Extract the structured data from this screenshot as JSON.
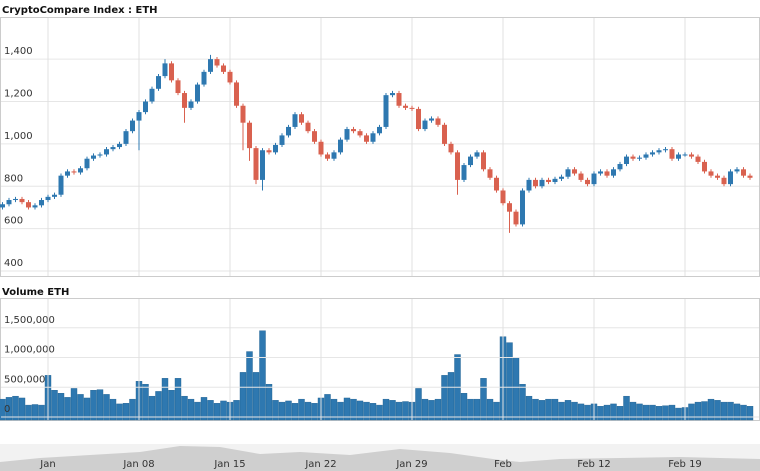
{
  "chart_data": [
    {
      "type": "candlestick",
      "title": "CryptoCompare Index : ETH",
      "categories": [
        null,
        null,
        null,
        null,
        null,
        null,
        null,
        "Jan",
        null,
        null,
        null,
        null,
        null,
        null,
        null,
        null,
        null,
        null,
        null,
        null,
        null,
        "Jan 08",
        null,
        null,
        null,
        null,
        null,
        null,
        null,
        null,
        null,
        null,
        null,
        null,
        null,
        "Jan 15",
        null,
        null,
        null,
        null,
        null,
        null,
        null,
        null,
        null,
        null,
        null,
        null,
        null,
        "Jan 22",
        null,
        null,
        null,
        null,
        null,
        null,
        null,
        null,
        null,
        null,
        null,
        null,
        null,
        "Jan 29",
        null,
        null,
        null,
        null,
        null,
        null,
        null,
        null,
        null,
        null,
        null,
        null,
        null,
        "Feb",
        null,
        null,
        null,
        null,
        null,
        null,
        null,
        null,
        null,
        null,
        null,
        null,
        null,
        "Feb 12",
        null,
        null,
        null,
        null,
        null,
        null,
        null,
        null,
        null,
        null,
        null,
        null,
        null,
        "Feb 19",
        null,
        null,
        null,
        null,
        null,
        null,
        null,
        null,
        null,
        null
      ],
      "open": [
        700,
        715,
        735,
        740,
        725,
        700,
        710,
        735,
        750,
        760,
        850,
        870,
        865,
        885,
        930,
        945,
        950,
        975,
        985,
        1000,
        1060,
        1110,
        1150,
        1200,
        1260,
        1320,
        1380,
        1300,
        1240,
        1170,
        1200,
        1280,
        1340,
        1400,
        1370,
        1340,
        1290,
        1180,
        1100,
        980,
        830,
        970,
        960,
        995,
        1040,
        1080,
        1140,
        1100,
        1060,
        1010,
        950,
        930,
        960,
        1020,
        1070,
        1060,
        1040,
        1010,
        1050,
        1080,
        1230,
        1240,
        1180,
        1170,
        1165,
        1070,
        1110,
        1120,
        1090,
        1000,
        960,
        830,
        900,
        940,
        960,
        880,
        840,
        780,
        720,
        680,
        620,
        780,
        830,
        800,
        830,
        820,
        835,
        845,
        880,
        860,
        830,
        810,
        860,
        870,
        850,
        880,
        905,
        940,
        930,
        935,
        950,
        960,
        970,
        975,
        930,
        950,
        950,
        940,
        915,
        870,
        850,
        840,
        810,
        870,
        880,
        850
      ],
      "high": [
        725,
        745,
        750,
        750,
        735,
        720,
        745,
        760,
        770,
        860,
        880,
        880,
        895,
        940,
        955,
        960,
        985,
        995,
        1010,
        1070,
        1120,
        1160,
        1210,
        1270,
        1330,
        1400,
        1390,
        1310,
        1250,
        1210,
        1290,
        1350,
        1420,
        1410,
        1380,
        1350,
        1300,
        1190,
        1110,
        990,
        980,
        980,
        1005,
        1050,
        1090,
        1150,
        1150,
        1110,
        1070,
        1020,
        960,
        970,
        1030,
        1080,
        1080,
        1070,
        1050,
        1060,
        1090,
        1240,
        1250,
        1250,
        1190,
        1180,
        1175,
        1120,
        1130,
        1130,
        1100,
        1010,
        970,
        910,
        950,
        970,
        970,
        890,
        850,
        790,
        730,
        690,
        790,
        840,
        840,
        840,
        840,
        845,
        855,
        890,
        890,
        870,
        840,
        870,
        880,
        880,
        890,
        915,
        950,
        950,
        945,
        960,
        970,
        980,
        985,
        985,
        960,
        960,
        960,
        950,
        925,
        880,
        860,
        850,
        880,
        890,
        890,
        860
      ],
      "low": [
        690,
        705,
        725,
        715,
        690,
        690,
        700,
        725,
        740,
        750,
        840,
        855,
        855,
        875,
        920,
        935,
        940,
        965,
        975,
        990,
        1050,
        970,
        1140,
        1190,
        1250,
        1310,
        1290,
        1230,
        1100,
        1160,
        1190,
        1270,
        1330,
        1360,
        1330,
        1280,
        1170,
        970,
        920,
        810,
        780,
        950,
        950,
        985,
        1030,
        1070,
        1090,
        1050,
        1000,
        940,
        920,
        920,
        950,
        1010,
        1050,
        1030,
        1000,
        1000,
        1040,
        1070,
        1220,
        1170,
        1160,
        1155,
        1060,
        1060,
        1100,
        1080,
        990,
        950,
        760,
        820,
        890,
        930,
        870,
        830,
        770,
        710,
        580,
        610,
        610,
        770,
        790,
        790,
        810,
        810,
        825,
        835,
        850,
        820,
        800,
        800,
        850,
        840,
        840,
        870,
        895,
        920,
        920,
        925,
        940,
        950,
        960,
        920,
        920,
        940,
        930,
        905,
        860,
        840,
        830,
        800,
        800,
        860,
        840,
        830
      ],
      "close": [
        715,
        735,
        740,
        725,
        700,
        710,
        735,
        750,
        760,
        850,
        870,
        865,
        885,
        930,
        945,
        950,
        975,
        985,
        1000,
        1060,
        1110,
        1150,
        1200,
        1260,
        1320,
        1380,
        1300,
        1240,
        1170,
        1200,
        1280,
        1340,
        1400,
        1370,
        1340,
        1290,
        1180,
        1100,
        980,
        830,
        970,
        960,
        995,
        1040,
        1080,
        1140,
        1100,
        1060,
        1010,
        950,
        930,
        960,
        1020,
        1070,
        1060,
        1040,
        1010,
        1050,
        1080,
        1230,
        1240,
        1180,
        1170,
        1165,
        1070,
        1110,
        1120,
        1090,
        1000,
        960,
        830,
        900,
        940,
        960,
        880,
        840,
        780,
        720,
        680,
        620,
        780,
        830,
        800,
        830,
        820,
        835,
        845,
        880,
        860,
        830,
        810,
        860,
        870,
        850,
        880,
        905,
        940,
        930,
        935,
        950,
        960,
        970,
        975,
        930,
        950,
        950,
        940,
        915,
        870,
        850,
        840,
        810,
        870,
        880,
        850,
        840
      ],
      "up_color": "#2e78b0",
      "down_color": "#d9614f",
      "ylim": [
        400,
        1580
      ],
      "yticks": [
        400,
        600,
        800,
        {
          "value": 1000,
          "label": "1,000"
        },
        {
          "value": 1200,
          "label": "1,200"
        },
        {
          "value": 1400,
          "label": "1,400"
        }
      ],
      "grid": true
    },
    {
      "type": "bar",
      "title": "Volume ETH",
      "color": "#2e78b0",
      "values": [
        300000,
        330000,
        350000,
        320000,
        200000,
        210000,
        200000,
        700000,
        450000,
        400000,
        330000,
        480000,
        380000,
        320000,
        450000,
        460000,
        380000,
        300000,
        220000,
        230000,
        300000,
        600000,
        550000,
        350000,
        430000,
        650000,
        450000,
        650000,
        350000,
        300000,
        250000,
        330000,
        280000,
        230000,
        270000,
        250000,
        280000,
        750000,
        1100000,
        750000,
        1450000,
        550000,
        280000,
        250000,
        270000,
        230000,
        300000,
        250000,
        230000,
        320000,
        380000,
        300000,
        250000,
        320000,
        300000,
        270000,
        250000,
        230000,
        200000,
        300000,
        280000,
        250000,
        260000,
        250000,
        480000,
        300000,
        280000,
        300000,
        700000,
        750000,
        1050000,
        400000,
        300000,
        300000,
        650000,
        300000,
        250000,
        1350000,
        1250000,
        1000000,
        550000,
        350000,
        300000,
        280000,
        300000,
        300000,
        250000,
        280000,
        250000,
        220000,
        200000,
        220000,
        180000,
        200000,
        220000,
        180000,
        350000,
        250000,
        220000,
        200000,
        200000,
        180000,
        190000,
        200000,
        150000,
        160000,
        220000,
        250000,
        260000,
        300000,
        280000,
        250000,
        250000,
        220000,
        200000,
        180000
      ],
      "ylim": [
        0,
        2000000
      ],
      "yticks": [
        0,
        {
          "value": 500000,
          "label": "500,000"
        },
        {
          "value": 1000000,
          "label": "1,000,000"
        },
        {
          "value": 1500000,
          "label": "1,500,000"
        }
      ],
      "grid": true
    }
  ]
}
